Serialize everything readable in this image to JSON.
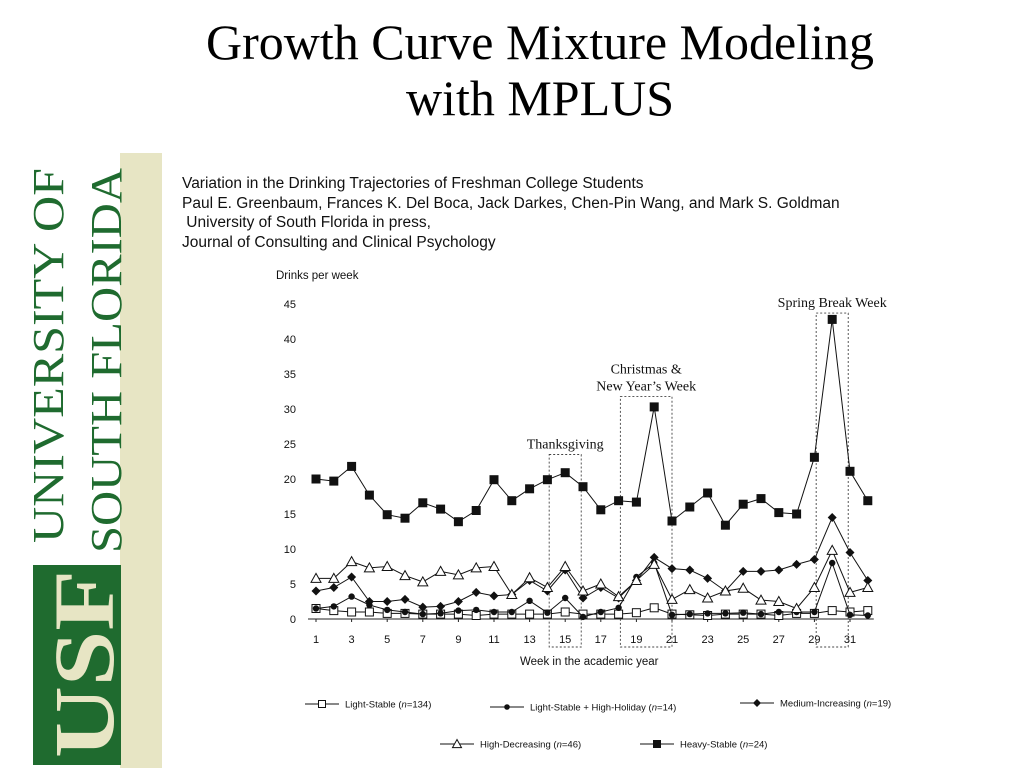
{
  "slide": {
    "title_line1": "Growth Curve Mixture Modeling",
    "title_line2": "with MPLUS"
  },
  "logo": {
    "text_line1": "UNIVERSITY OF",
    "text_line2": "SOUTH FLORIDA",
    "mark": "USF",
    "colors": {
      "green": "#1f6b2f",
      "pale": "#e7e5c4"
    }
  },
  "citation": {
    "line1": "Variation in the Drinking Trajectories of Freshman College Students",
    "line2": "Paul E. Greenbaum, Frances K. Del Boca, Jack Darkes, Chen-Pin Wang, and Mark S. Goldman",
    "line3": " University of South Florida in press,",
    "line4": "Journal of Consulting and Clinical Psychology"
  },
  "chart_data": {
    "type": "line",
    "title": "",
    "ylabel": "Drinks per week",
    "xlabel": "Week in the academic year",
    "ylim": [
      0,
      45
    ],
    "xlim": [
      1,
      32
    ],
    "y_ticks": [
      0,
      5,
      10,
      15,
      20,
      25,
      30,
      35,
      40,
      45
    ],
    "x_ticks": [
      1,
      3,
      5,
      7,
      9,
      11,
      13,
      15,
      17,
      19,
      21,
      23,
      25,
      27,
      29,
      31
    ],
    "grid": false,
    "x": [
      1,
      2,
      3,
      4,
      5,
      6,
      7,
      8,
      9,
      10,
      11,
      12,
      13,
      14,
      15,
      16,
      17,
      18,
      19,
      20,
      21,
      22,
      23,
      24,
      25,
      26,
      27,
      28,
      29,
      30,
      31,
      32
    ],
    "annotations": [
      {
        "label_lines": [
          "Thanksgiving"
        ],
        "x_range": [
          14.1,
          15.9
        ]
      },
      {
        "label_lines": [
          "Christmas &",
          "New Year’s Week"
        ],
        "x_range": [
          18.1,
          21.0
        ]
      },
      {
        "label_lines": [
          "Spring Break Week"
        ],
        "x_range": [
          29.1,
          30.9
        ]
      }
    ],
    "series": [
      {
        "name": "Light-Stable (n=134)",
        "legend_parts": [
          "Light-Stable (",
          "n",
          "=134)"
        ],
        "marker": "square-open",
        "values": [
          1.5,
          1.2,
          1.0,
          1.0,
          0.8,
          0.8,
          0.7,
          0.7,
          0.7,
          0.5,
          0.7,
          0.7,
          0.7,
          0.7,
          1.0,
          0.7,
          0.7,
          0.7,
          0.9,
          1.6,
          0.7,
          0.6,
          0.5,
          0.7,
          0.7,
          0.7,
          0.5,
          0.8,
          0.8,
          1.2,
          1.0,
          1.2
        ]
      },
      {
        "name": "Light-Stable + High-Holiday (n=14)",
        "legend_parts": [
          "Light-Stable + High-Holiday (",
          "n",
          "=14)"
        ],
        "marker": "circle-filled",
        "values": [
          1.5,
          1.8,
          3.2,
          2.0,
          1.3,
          1.0,
          0.7,
          0.8,
          1.2,
          1.3,
          1.0,
          1.0,
          2.6,
          0.9,
          3.0,
          0.3,
          1.0,
          1.6,
          6.0,
          8.0,
          0.6,
          0.7,
          0.8,
          0.8,
          0.9,
          0.7,
          1.0,
          1.0,
          1.0,
          8.0,
          0.6,
          0.5
        ]
      },
      {
        "name": "Medium-Increasing (n=19)",
        "legend_parts": [
          "Medium-Increasing (",
          "n",
          "=19)"
        ],
        "marker": "diamond-filled",
        "values": [
          4.0,
          4.5,
          6.0,
          2.5,
          2.5,
          2.8,
          1.7,
          1.8,
          2.5,
          3.8,
          3.3,
          3.5,
          5.5,
          4.0,
          7.0,
          3.0,
          4.5,
          3.0,
          5.5,
          8.8,
          7.2,
          7.0,
          5.8,
          4.0,
          6.8,
          6.8,
          7.0,
          7.8,
          8.5,
          14.5,
          9.5,
          5.5
        ]
      },
      {
        "name": "High-Decreasing (n=46)",
        "legend_parts": [
          "High-Decreasing (",
          "n",
          "=46)"
        ],
        "marker": "triangle-open",
        "values": [
          5.8,
          5.8,
          8.2,
          7.3,
          7.5,
          6.2,
          5.3,
          6.8,
          6.3,
          7.3,
          7.5,
          3.5,
          5.9,
          4.5,
          7.5,
          4.0,
          5.0,
          3.2,
          5.5,
          7.8,
          2.8,
          4.2,
          3.0,
          4.0,
          4.4,
          2.7,
          2.5,
          1.5,
          4.5,
          9.8,
          3.8,
          4.5
        ]
      },
      {
        "name": "Heavy-Stable (n=24)",
        "legend_parts": [
          "Heavy-Stable (",
          "n",
          "=24)"
        ],
        "marker": "square-filled",
        "values": [
          20.0,
          19.7,
          21.8,
          17.7,
          14.9,
          14.4,
          16.6,
          15.7,
          13.9,
          15.5,
          19.9,
          16.9,
          18.6,
          19.9,
          20.9,
          18.9,
          15.6,
          16.9,
          16.7,
          30.3,
          14.0,
          16.0,
          18.0,
          13.4,
          16.4,
          17.2,
          15.2,
          15.0,
          23.1,
          42.8,
          21.1,
          16.9
        ]
      }
    ]
  }
}
